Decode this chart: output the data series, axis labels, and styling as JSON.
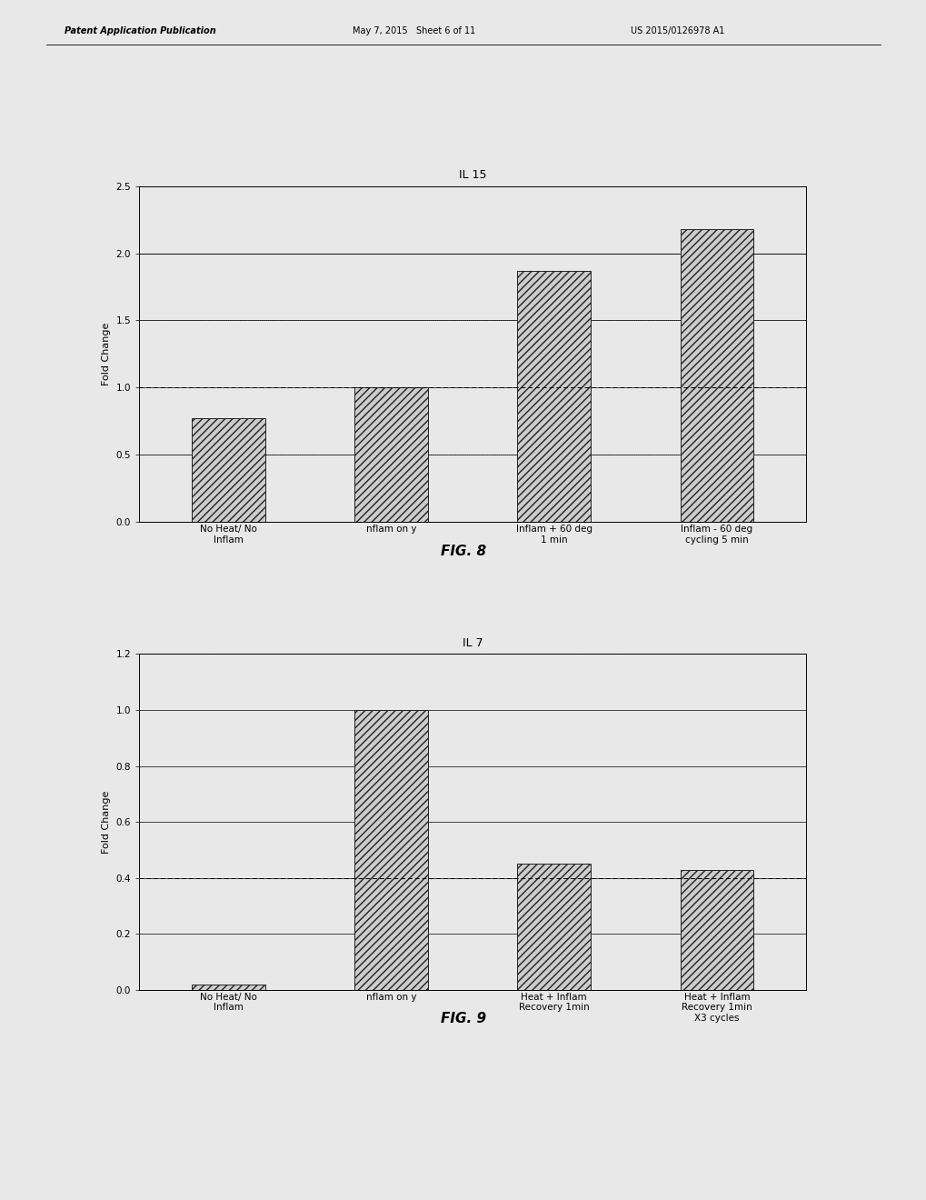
{
  "fig8": {
    "title": "IL 15",
    "ylabel": "Fold Change",
    "categories": [
      "No Heat/ No\nInflam",
      "nflam on y",
      "Inflam + 60 deg\n1 min",
      "Inflam - 60 deg\ncycling 5 min"
    ],
    "values": [
      0.77,
      1.0,
      1.87,
      2.18
    ],
    "ylim": [
      0,
      2.5
    ],
    "yticks": [
      0,
      0.5,
      1.0,
      1.5,
      2.0,
      2.5
    ],
    "hline_value": 1.0,
    "fig_label": "FIG. 8"
  },
  "fig9": {
    "title": "IL 7",
    "ylabel": "Fold Change",
    "categories": [
      "No Heat/ No\nInflam",
      "nflam on y",
      "Heat + Inflam\nRecovery 1min",
      "Heat + Inflam\nRecovery 1min\nX3 cycles"
    ],
    "values": [
      0.02,
      1.0,
      0.45,
      0.43
    ],
    "ylim": [
      0,
      1.2
    ],
    "yticks": [
      0,
      0.2,
      0.4,
      0.6,
      0.8,
      1.0,
      1.2
    ],
    "hline_value": 0.4,
    "fig_label": "FIG. 9"
  },
  "page_bg": "#e8e8e8",
  "bar_facecolor": "#cccccc",
  "bar_edgecolor": "#222222",
  "hatch_pattern": "////",
  "bar_width": 0.45,
  "font_size_title": 9,
  "font_size_ylabel": 8,
  "font_size_tick": 7.5,
  "font_size_fig_label": 11,
  "font_size_header": 7,
  "header_left": "Patent Application Publication",
  "header_mid": "May 7, 2015   Sheet 6 of 11",
  "header_right": "US 2015/0126978 A1"
}
